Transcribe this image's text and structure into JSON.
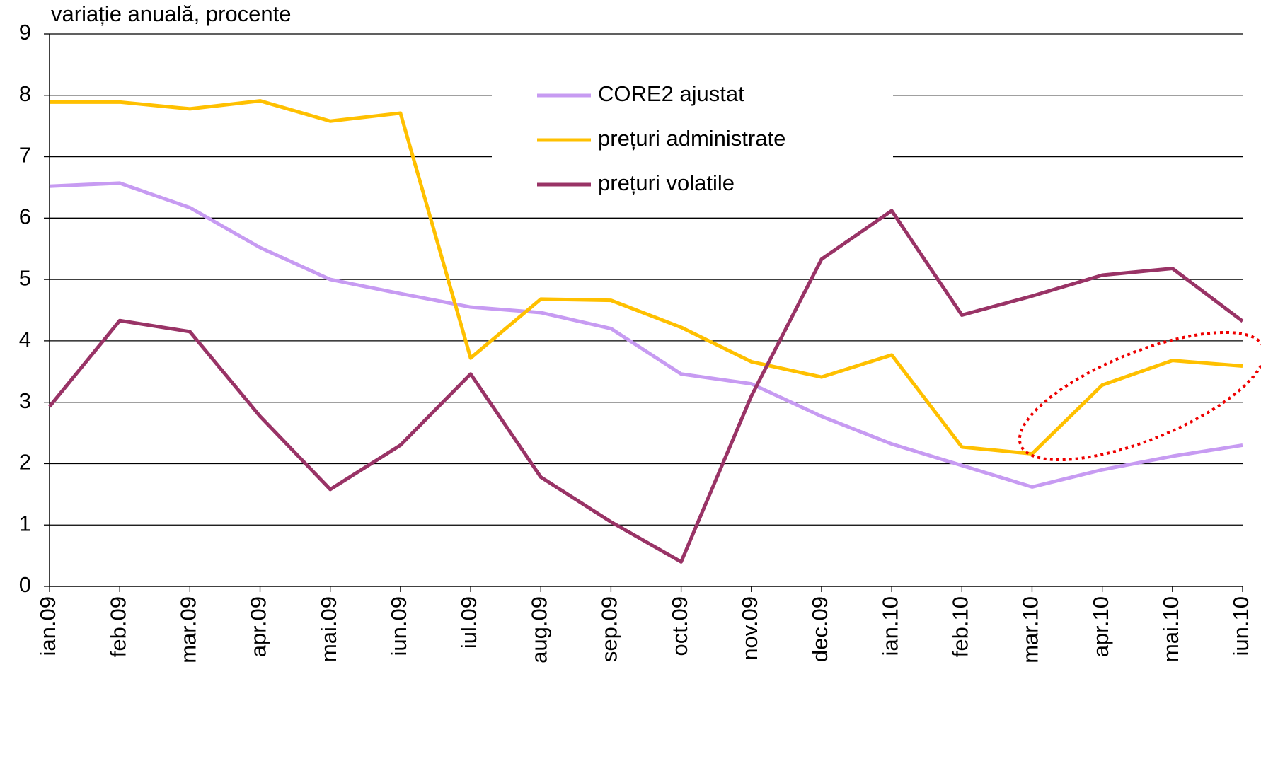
{
  "chart_data": {
    "type": "line",
    "axis_title": "variație anuală, procente",
    "categories": [
      "ian.09",
      "feb.09",
      "mar.09",
      "apr.09",
      "mai.09",
      "iun.09",
      "iul.09",
      "aug.09",
      "sep.09",
      "oct.09",
      "nov.09",
      "dec.09",
      "ian.10",
      "feb.10",
      "mar.10",
      "apr.10",
      "mai.10",
      "iun.10"
    ],
    "series": [
      {
        "name": "CORE2 ajustat",
        "color": "#c79bf2",
        "values": [
          6.52,
          6.57,
          6.17,
          5.52,
          5.0,
          4.77,
          4.55,
          4.46,
          4.2,
          3.46,
          3.3,
          2.77,
          2.32,
          1.97,
          1.62,
          1.9,
          2.12,
          2.3
        ]
      },
      {
        "name": "prețuri administrate",
        "color": "#ffc000",
        "values": [
          7.89,
          7.89,
          7.78,
          7.91,
          7.58,
          7.71,
          3.72,
          4.68,
          4.66,
          4.22,
          3.66,
          3.41,
          3.77,
          2.27,
          2.16,
          3.28,
          3.68,
          3.59
        ]
      },
      {
        "name": "prețuri volatile",
        "color": "#993366",
        "values": [
          2.93,
          4.33,
          4.15,
          2.77,
          1.58,
          2.3,
          3.46,
          1.78,
          1.05,
          0.4,
          3.1,
          5.33,
          6.12,
          4.42,
          4.73,
          5.07,
          5.18,
          4.32
        ]
      }
    ],
    "ylim": [
      0,
      9
    ],
    "yticks": [
      0,
      1,
      2,
      3,
      4,
      5,
      6,
      7,
      8,
      9
    ],
    "grid": true
  }
}
